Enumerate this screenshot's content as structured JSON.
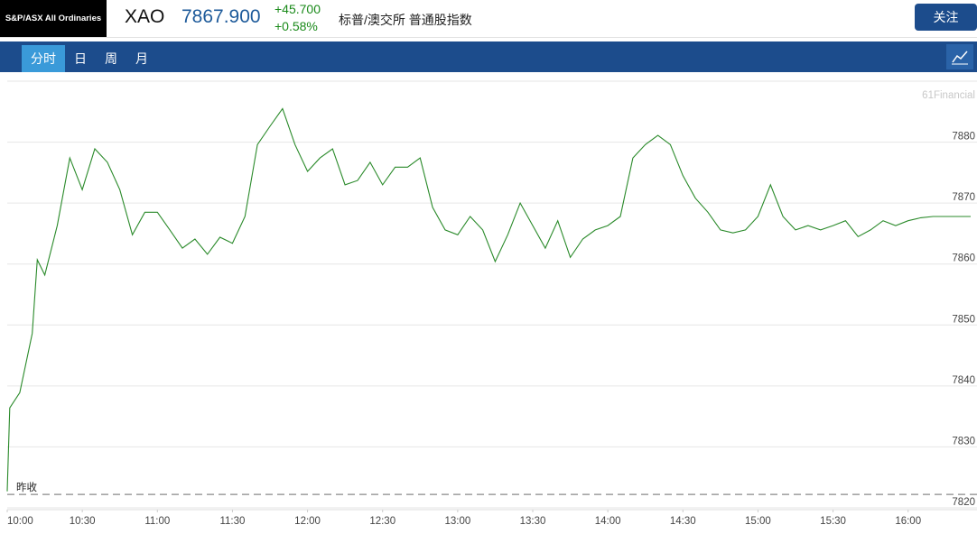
{
  "header": {
    "logo": "S&P/ASX All Ordinaries",
    "symbol": "XAO",
    "price": "7867.900",
    "change": "+45.700",
    "change_pct": "+0.58%",
    "name": "标普/澳交所 普通股指数",
    "follow_button": "关注"
  },
  "tabs": {
    "items": [
      "分时",
      "日",
      "周",
      "月"
    ],
    "active": 0
  },
  "chart_data": {
    "type": "line",
    "watermark": "61Financial",
    "x": [
      "10:00",
      "10:01",
      "10:05",
      "10:10",
      "10:12",
      "10:15",
      "10:20",
      "10:25",
      "10:30",
      "10:35",
      "10:40",
      "10:45",
      "10:50",
      "10:55",
      "11:00",
      "11:05",
      "11:10",
      "11:15",
      "11:20",
      "11:25",
      "11:30",
      "11:35",
      "11:40",
      "11:45",
      "11:50",
      "11:55",
      "12:00",
      "12:05",
      "12:10",
      "12:15",
      "12:20",
      "12:25",
      "12:30",
      "12:35",
      "12:40",
      "12:45",
      "12:50",
      "12:55",
      "13:00",
      "13:05",
      "13:10",
      "13:15",
      "13:20",
      "13:25",
      "13:30",
      "13:35",
      "13:40",
      "13:45",
      "13:50",
      "13:55",
      "14:00",
      "14:05",
      "14:10",
      "14:15",
      "14:20",
      "14:25",
      "14:30",
      "14:35",
      "14:40",
      "14:45",
      "14:50",
      "14:55",
      "15:00",
      "15:05",
      "15:10",
      "15:15",
      "15:20",
      "15:25",
      "15:30",
      "15:35",
      "15:40",
      "15:45",
      "15:50",
      "15:55",
      "16:00",
      "16:05",
      "16:10",
      "16:15",
      "16:20",
      "16:25"
    ],
    "series": [
      {
        "color": "#2a8a2a",
        "values": [
          7822.7,
          7836.4,
          7838.9,
          7848.6,
          7860.7,
          7858.2,
          7866.3,
          7877.4,
          7872.2,
          7878.9,
          7876.7,
          7872.2,
          7864.8,
          7868.5,
          7868.5,
          7865.6,
          7862.6,
          7864.1,
          7861.6,
          7864.4,
          7863.4,
          7867.8,
          7879.6,
          7882.6,
          7885.5,
          7879.6,
          7875.2,
          7877.4,
          7878.9,
          7873.0,
          7873.7,
          7876.7,
          7873.0,
          7875.9,
          7875.9,
          7877.4,
          7869.3,
          7865.6,
          7864.8,
          7867.8,
          7865.6,
          7860.4,
          7864.8,
          7870.0,
          7866.3,
          7862.6,
          7867.1,
          7861.1,
          7864.1,
          7865.6,
          7866.3,
          7867.8,
          7877.4,
          7879.6,
          7881.1,
          7879.6,
          7874.5,
          7870.8,
          7868.5,
          7865.6,
          7865.1,
          7865.6,
          7867.8,
          7873.0,
          7867.8,
          7865.6,
          7866.3,
          7865.6,
          7866.3,
          7867.1,
          7864.5,
          7865.6,
          7867.1,
          7866.3,
          7867.1,
          7867.6,
          7867.8,
          7867.8,
          7867.8,
          7867.8
        ]
      }
    ],
    "xlim": [
      "10:00",
      "16:25"
    ],
    "xticks": [
      "10:00",
      "10:30",
      "11:00",
      "11:30",
      "12:00",
      "12:30",
      "13:00",
      "13:30",
      "14:00",
      "14:30",
      "15:00",
      "15:30",
      "16:00"
    ],
    "ylim": [
      7819.7,
      7890
    ],
    "yticks": [
      7820,
      7830,
      7840,
      7850,
      7860,
      7870,
      7880
    ],
    "grid": true,
    "prev_close": {
      "label": "昨收",
      "value": 7822.2,
      "color": "#888888"
    }
  }
}
